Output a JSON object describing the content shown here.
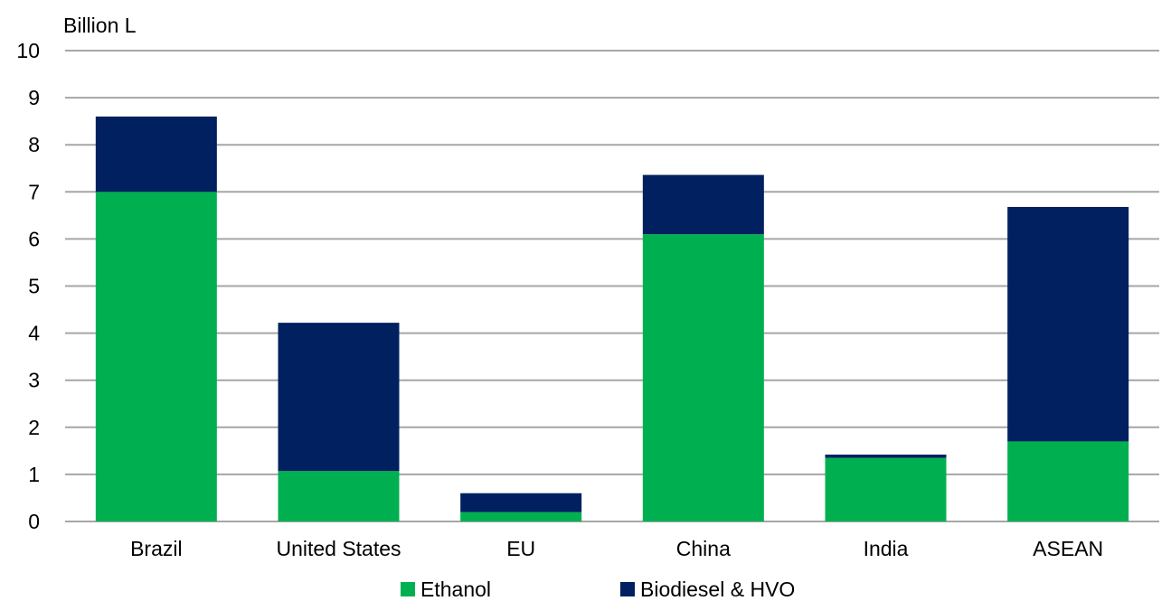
{
  "chart_data": {
    "type": "bar",
    "stacked": true,
    "title": "",
    "xlabel": "",
    "ylabel": "Billion L",
    "ylim": [
      0,
      10
    ],
    "yticks": [
      0,
      1,
      2,
      3,
      4,
      5,
      6,
      7,
      8,
      9,
      10
    ],
    "categories": [
      "Brazil",
      "United States",
      "EU",
      "China",
      "India",
      "ASEAN"
    ],
    "series": [
      {
        "name": "Ethanol",
        "color": "#00b050",
        "values": [
          7.0,
          1.07,
          0.2,
          6.1,
          1.35,
          1.7
        ]
      },
      {
        "name": "Biodiesel & HVO",
        "color": "#002060",
        "values": [
          1.6,
          3.15,
          0.4,
          1.26,
          0.07,
          4.98
        ]
      }
    ],
    "grid": true,
    "gridColor": "#a6a6a6",
    "legend": "bottom"
  }
}
